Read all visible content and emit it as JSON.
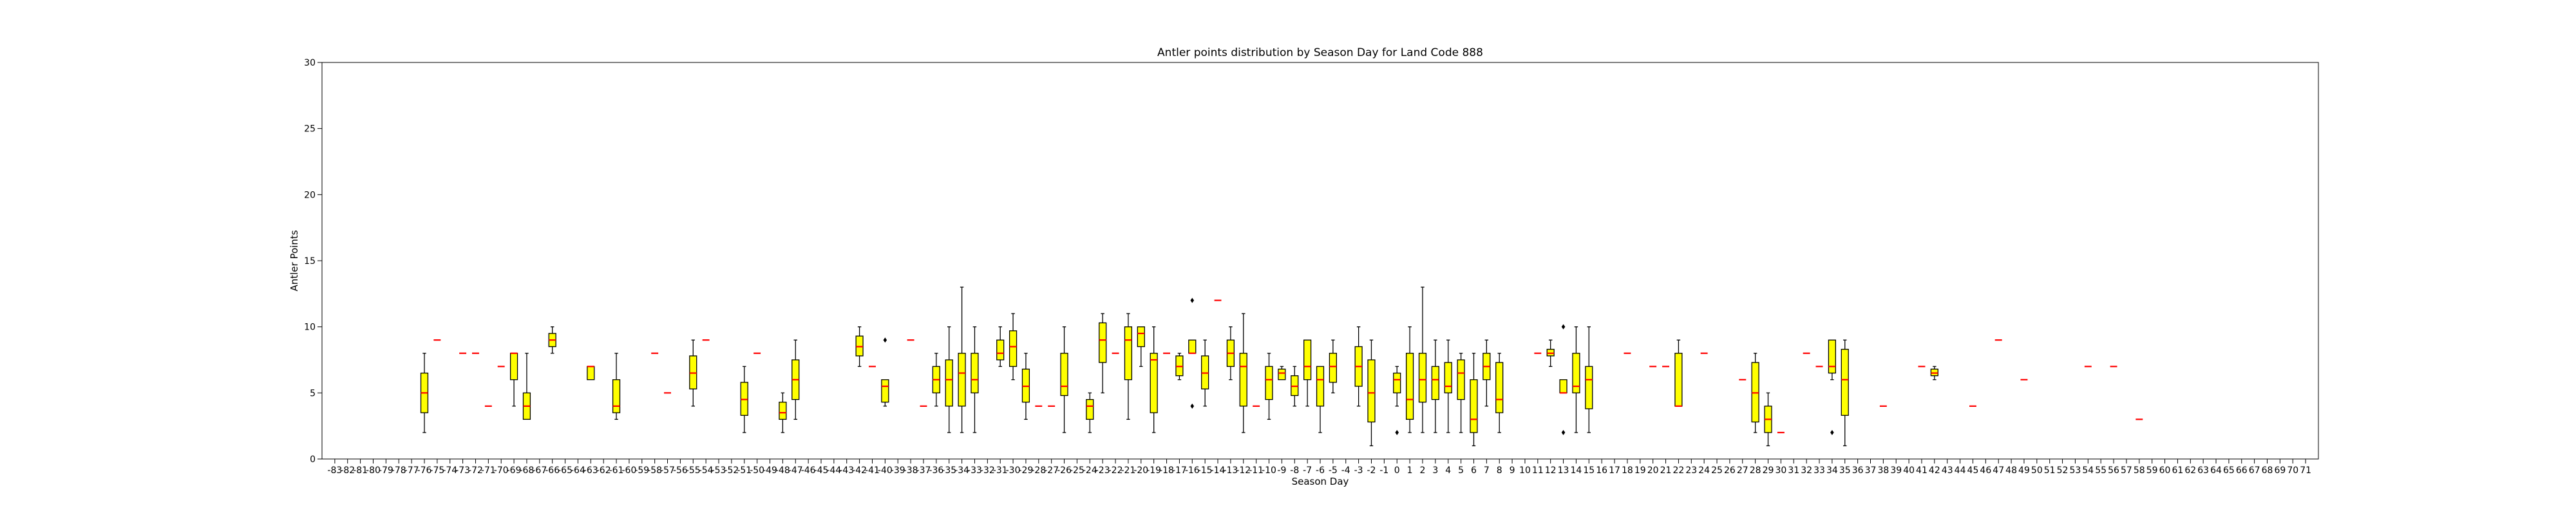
{
  "chart_data": {
    "type": "boxplot",
    "title": "Antler points distribution by Season Day for Land Code 888",
    "xlabel": "Season Day",
    "ylabel": "Antler Points",
    "ylim": [
      0,
      30
    ],
    "yticks": [
      0,
      5,
      10,
      15,
      20,
      25,
      30
    ],
    "x_range": [
      -83,
      71
    ],
    "grid": false,
    "legend": "none",
    "colors": {
      "box_fill": "#ffff00",
      "median": "#ff0000",
      "whisker": "#000000"
    },
    "boxes": [
      {
        "x": -76,
        "q1": 3.5,
        "median": 5,
        "q3": 6.5,
        "wlow": 2,
        "whigh": 8
      },
      {
        "x": -75,
        "q1": 9,
        "median": 9,
        "q3": 9,
        "wlow": 9,
        "whigh": 9
      },
      {
        "x": -73,
        "q1": 8,
        "median": 8,
        "q3": 8,
        "wlow": 8,
        "whigh": 8
      },
      {
        "x": -72,
        "q1": 8,
        "median": 8,
        "q3": 8,
        "wlow": 8,
        "whigh": 8
      },
      {
        "x": -71,
        "q1": 4,
        "median": 4,
        "q3": 4,
        "wlow": 4,
        "whigh": 4
      },
      {
        "x": -70,
        "q1": 7,
        "median": 7,
        "q3": 7,
        "wlow": 7,
        "whigh": 7
      },
      {
        "x": -69,
        "q1": 6,
        "median": 8,
        "q3": 8,
        "wlow": 4,
        "whigh": 8
      },
      {
        "x": -68,
        "q1": 3,
        "median": 4,
        "q3": 5,
        "wlow": 3,
        "whigh": 8
      },
      {
        "x": -66,
        "q1": 8.5,
        "median": 9,
        "q3": 9.5,
        "wlow": 8,
        "whigh": 10
      },
      {
        "x": -63,
        "q1": 6,
        "median": 7,
        "q3": 7,
        "wlow": 6,
        "whigh": 7
      },
      {
        "x": -61,
        "q1": 3.5,
        "median": 4,
        "q3": 6,
        "wlow": 3,
        "whigh": 8
      },
      {
        "x": -58,
        "q1": 8,
        "median": 8,
        "q3": 8,
        "wlow": 8,
        "whigh": 8
      },
      {
        "x": -57,
        "q1": 5,
        "median": 5,
        "q3": 5,
        "wlow": 5,
        "whigh": 5
      },
      {
        "x": -55,
        "q1": 5.3,
        "median": 6.5,
        "q3": 7.8,
        "wlow": 4,
        "whigh": 9
      },
      {
        "x": -54,
        "q1": 9,
        "median": 9,
        "q3": 9,
        "wlow": 9,
        "whigh": 9
      },
      {
        "x": -51,
        "q1": 3.3,
        "median": 4.5,
        "q3": 5.8,
        "wlow": 2,
        "whigh": 7
      },
      {
        "x": -50,
        "q1": 8,
        "median": 8,
        "q3": 8,
        "wlow": 8,
        "whigh": 8
      },
      {
        "x": -48,
        "q1": 3,
        "median": 3.5,
        "q3": 4.3,
        "wlow": 2,
        "whigh": 5
      },
      {
        "x": -47,
        "q1": 4.5,
        "median": 6,
        "q3": 7.5,
        "wlow": 3,
        "whigh": 9
      },
      {
        "x": -42,
        "q1": 7.8,
        "median": 8.5,
        "q3": 9.3,
        "wlow": 7,
        "whigh": 10
      },
      {
        "x": -41,
        "q1": 7,
        "median": 7,
        "q3": 7,
        "wlow": 7,
        "whigh": 7
      },
      {
        "x": -40,
        "q1": 4.3,
        "median": 5.5,
        "q3": 6,
        "wlow": 4,
        "whigh": 6,
        "fliers": [
          9
        ]
      },
      {
        "x": -38,
        "q1": 9,
        "median": 9,
        "q3": 9,
        "wlow": 9,
        "whigh": 9
      },
      {
        "x": -37,
        "q1": 4,
        "median": 4,
        "q3": 4,
        "wlow": 4,
        "whigh": 4
      },
      {
        "x": -36,
        "q1": 5,
        "median": 6,
        "q3": 7,
        "wlow": 4,
        "whigh": 8
      },
      {
        "x": -35,
        "q1": 4,
        "median": 6,
        "q3": 7.5,
        "wlow": 2,
        "whigh": 10
      },
      {
        "x": -34,
        "q1": 4,
        "median": 6.5,
        "q3": 8,
        "wlow": 2,
        "whigh": 13
      },
      {
        "x": -33,
        "q1": 5,
        "median": 6,
        "q3": 8,
        "wlow": 2,
        "whigh": 10
      },
      {
        "x": -31,
        "q1": 7.5,
        "median": 8,
        "q3": 9,
        "wlow": 7,
        "whigh": 10
      },
      {
        "x": -30,
        "q1": 7,
        "median": 8.5,
        "q3": 9.7,
        "wlow": 6,
        "whigh": 11
      },
      {
        "x": -29,
        "q1": 4.3,
        "median": 5.5,
        "q3": 6.8,
        "wlow": 3,
        "whigh": 8
      },
      {
        "x": -28,
        "q1": 4,
        "median": 4,
        "q3": 4,
        "wlow": 4,
        "whigh": 4
      },
      {
        "x": -27,
        "q1": 4,
        "median": 4,
        "q3": 4,
        "wlow": 4,
        "whigh": 4
      },
      {
        "x": -26,
        "q1": 4.8,
        "median": 5.5,
        "q3": 8,
        "wlow": 2,
        "whigh": 10
      },
      {
        "x": -24,
        "q1": 3,
        "median": 4,
        "q3": 4.5,
        "wlow": 2,
        "whigh": 5
      },
      {
        "x": -23,
        "q1": 7.3,
        "median": 9,
        "q3": 10.3,
        "wlow": 5,
        "whigh": 11
      },
      {
        "x": -22,
        "q1": 8,
        "median": 8,
        "q3": 8,
        "wlow": 8,
        "whigh": 8
      },
      {
        "x": -21,
        "q1": 6,
        "median": 9,
        "q3": 10,
        "wlow": 3,
        "whigh": 11
      },
      {
        "x": -20,
        "q1": 8.5,
        "median": 9.5,
        "q3": 10,
        "wlow": 7,
        "whigh": 10
      },
      {
        "x": -19,
        "q1": 3.5,
        "median": 7.5,
        "q3": 8,
        "wlow": 2,
        "whigh": 10
      },
      {
        "x": -18,
        "q1": 8,
        "median": 8,
        "q3": 8,
        "wlow": 8,
        "whigh": 8
      },
      {
        "x": -17,
        "q1": 6.3,
        "median": 7,
        "q3": 7.8,
        "wlow": 6,
        "whigh": 8
      },
      {
        "x": -16,
        "q1": 8,
        "median": 8,
        "q3": 9,
        "wlow": 8,
        "whigh": 9,
        "fliers": [
          12,
          4
        ]
      },
      {
        "x": -15,
        "q1": 5.3,
        "median": 6.5,
        "q3": 7.8,
        "wlow": 4,
        "whigh": 9
      },
      {
        "x": -14,
        "q1": 12,
        "median": 12,
        "q3": 12,
        "wlow": 12,
        "whigh": 12
      },
      {
        "x": -13,
        "q1": 7,
        "median": 8,
        "q3": 9,
        "wlow": 6,
        "whigh": 10
      },
      {
        "x": -12,
        "q1": 4,
        "median": 7,
        "q3": 8,
        "wlow": 2,
        "whigh": 11
      },
      {
        "x": -11,
        "q1": 4,
        "median": 4,
        "q3": 4,
        "wlow": 4,
        "whigh": 4
      },
      {
        "x": -10,
        "q1": 4.5,
        "median": 6,
        "q3": 7,
        "wlow": 3,
        "whigh": 8
      },
      {
        "x": -9,
        "q1": 6,
        "median": 6.5,
        "q3": 6.8,
        "wlow": 6,
        "whigh": 7
      },
      {
        "x": -8,
        "q1": 4.8,
        "median": 5.5,
        "q3": 6.3,
        "wlow": 4,
        "whigh": 7
      },
      {
        "x": -7,
        "q1": 6,
        "median": 7,
        "q3": 9,
        "wlow": 4,
        "whigh": 9
      },
      {
        "x": -6,
        "q1": 4,
        "median": 6,
        "q3": 7,
        "wlow": 2,
        "whigh": 7
      },
      {
        "x": -5,
        "q1": 5.8,
        "median": 7,
        "q3": 8,
        "wlow": 5,
        "whigh": 9
      },
      {
        "x": -3,
        "q1": 5.5,
        "median": 7,
        "q3": 8.5,
        "wlow": 4,
        "whigh": 10
      },
      {
        "x": -2,
        "q1": 2.8,
        "median": 5,
        "q3": 7.5,
        "wlow": 1,
        "whigh": 9
      },
      {
        "x": 0,
        "q1": 5,
        "median": 6,
        "q3": 6.5,
        "wlow": 4,
        "whigh": 7,
        "fliers": [
          2
        ]
      },
      {
        "x": 1,
        "q1": 3,
        "median": 4.5,
        "q3": 8,
        "wlow": 2,
        "whigh": 10
      },
      {
        "x": 2,
        "q1": 4.3,
        "median": 6,
        "q3": 8,
        "wlow": 2,
        "whigh": 13
      },
      {
        "x": 3,
        "q1": 4.5,
        "median": 6,
        "q3": 7,
        "wlow": 2,
        "whigh": 9
      },
      {
        "x": 4,
        "q1": 5,
        "median": 5.5,
        "q3": 7.3,
        "wlow": 2,
        "whigh": 9
      },
      {
        "x": 5,
        "q1": 4.5,
        "median": 6.5,
        "q3": 7.5,
        "wlow": 2,
        "whigh": 8
      },
      {
        "x": 6,
        "q1": 2,
        "median": 3,
        "q3": 6,
        "wlow": 1,
        "whigh": 8
      },
      {
        "x": 7,
        "q1": 6,
        "median": 7,
        "q3": 8,
        "wlow": 4,
        "whigh": 9
      },
      {
        "x": 8,
        "q1": 3.5,
        "median": 4.5,
        "q3": 7.3,
        "wlow": 2,
        "whigh": 8
      },
      {
        "x": 11,
        "q1": 8,
        "median": 8,
        "q3": 8,
        "wlow": 8,
        "whigh": 8
      },
      {
        "x": 12,
        "q1": 7.8,
        "median": 8,
        "q3": 8.3,
        "wlow": 7,
        "whigh": 9
      },
      {
        "x": 13,
        "q1": 5,
        "median": 5,
        "q3": 6,
        "wlow": 5,
        "whigh": 6,
        "fliers": [
          10,
          2
        ]
      },
      {
        "x": 14,
        "q1": 5,
        "median": 5.5,
        "q3": 8,
        "wlow": 2,
        "whigh": 10
      },
      {
        "x": 15,
        "q1": 3.8,
        "median": 6,
        "q3": 7,
        "wlow": 2,
        "whigh": 10
      },
      {
        "x": 18,
        "q1": 8,
        "median": 8,
        "q3": 8,
        "wlow": 8,
        "whigh": 8
      },
      {
        "x": 20,
        "q1": 7,
        "median": 7,
        "q3": 7,
        "wlow": 7,
        "whigh": 7
      },
      {
        "x": 21,
        "q1": 7,
        "median": 7,
        "q3": 7,
        "wlow": 7,
        "whigh": 7
      },
      {
        "x": 22,
        "q1": 4,
        "median": 4,
        "q3": 8,
        "wlow": 4,
        "whigh": 9
      },
      {
        "x": 24,
        "q1": 8,
        "median": 8,
        "q3": 8,
        "wlow": 8,
        "whigh": 8
      },
      {
        "x": 27,
        "q1": 6,
        "median": 6,
        "q3": 6,
        "wlow": 6,
        "whigh": 6
      },
      {
        "x": 28,
        "q1": 2.8,
        "median": 5,
        "q3": 7.3,
        "wlow": 2,
        "whigh": 8
      },
      {
        "x": 29,
        "q1": 2,
        "median": 3,
        "q3": 4,
        "wlow": 1,
        "whigh": 5
      },
      {
        "x": 30,
        "q1": 2,
        "median": 2,
        "q3": 2,
        "wlow": 2,
        "whigh": 2
      },
      {
        "x": 32,
        "q1": 8,
        "median": 8,
        "q3": 8,
        "wlow": 8,
        "whigh": 8
      },
      {
        "x": 33,
        "q1": 7,
        "median": 7,
        "q3": 7,
        "wlow": 7,
        "whigh": 7
      },
      {
        "x": 34,
        "q1": 6.5,
        "median": 7,
        "q3": 9,
        "wlow": 6,
        "whigh": 9,
        "fliers": [
          2
        ]
      },
      {
        "x": 35,
        "q1": 3.3,
        "median": 6,
        "q3": 8.3,
        "wlow": 1,
        "whigh": 9
      },
      {
        "x": 38,
        "q1": 4,
        "median": 4,
        "q3": 4,
        "wlow": 4,
        "whigh": 4
      },
      {
        "x": 41,
        "q1": 7,
        "median": 7,
        "q3": 7,
        "wlow": 7,
        "whigh": 7
      },
      {
        "x": 42,
        "q1": 6.3,
        "median": 6.5,
        "q3": 6.8,
        "wlow": 6,
        "whigh": 7
      },
      {
        "x": 45,
        "q1": 4,
        "median": 4,
        "q3": 4,
        "wlow": 4,
        "whigh": 4
      },
      {
        "x": 47,
        "q1": 9,
        "median": 9,
        "q3": 9,
        "wlow": 9,
        "whigh": 9
      },
      {
        "x": 49,
        "q1": 6,
        "median": 6,
        "q3": 6,
        "wlow": 6,
        "whigh": 6
      },
      {
        "x": 54,
        "q1": 7,
        "median": 7,
        "q3": 7,
        "wlow": 7,
        "whigh": 7
      },
      {
        "x": 56,
        "q1": 7,
        "median": 7,
        "q3": 7,
        "wlow": 7,
        "whigh": 7
      },
      {
        "x": 58,
        "q1": 3,
        "median": 3,
        "q3": 3,
        "wlow": 3,
        "whigh": 3
      }
    ]
  }
}
